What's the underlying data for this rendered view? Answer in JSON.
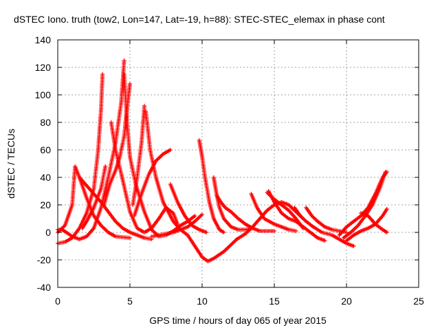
{
  "chart_data": {
    "type": "scatter",
    "title": "dSTEC Iono. truth (tow2, Lon=147, Lat=-19, h=88): STEC-STEC_elemax in phase cont",
    "xlabel": "GPS time / hours of day 065 of year 2015",
    "ylabel": "dSTEC  / TECUs",
    "xlim": [
      0,
      25
    ],
    "ylim": [
      -40,
      140
    ],
    "xticks": [
      "0",
      "5",
      "10",
      "15",
      "20",
      "25"
    ],
    "yticks": [
      "-40",
      "-20",
      "0",
      "20",
      "40",
      "60",
      "80",
      "100",
      "120",
      "140"
    ],
    "grid": true,
    "marker": "+",
    "color": "#ff0000",
    "tracks": [
      [
        [
          0,
          -8
        ],
        [
          0.5,
          -7
        ],
        [
          1,
          -4
        ],
        [
          1.5,
          3
        ],
        [
          2,
          14
        ],
        [
          2.5,
          32
        ],
        [
          2.8,
          60
        ],
        [
          3,
          90
        ],
        [
          3.1,
          115
        ]
      ],
      [
        [
          0,
          2
        ],
        [
          0.3,
          2
        ],
        [
          0.6,
          0
        ],
        [
          1,
          -3
        ],
        [
          1.5,
          -5
        ],
        [
          2,
          -3
        ],
        [
          2.5,
          3
        ],
        [
          3,
          18
        ],
        [
          3.5,
          40
        ],
        [
          4,
          65
        ],
        [
          4.4,
          95
        ],
        [
          4.6,
          125
        ]
      ],
      [
        [
          3.7,
          80
        ],
        [
          4,
          60
        ],
        [
          4.5,
          38
        ],
        [
          5,
          15
        ],
        [
          5.5,
          3
        ],
        [
          6,
          0
        ],
        [
          6.5,
          3
        ],
        [
          7,
          10
        ],
        [
          7.5,
          18
        ],
        [
          8,
          14
        ],
        [
          8.3,
          6
        ]
      ],
      [
        [
          4.6,
          115
        ],
        [
          4.8,
          80
        ],
        [
          5,
          55
        ],
        [
          5.4,
          35
        ],
        [
          6,
          15
        ],
        [
          6.5,
          2
        ],
        [
          7,
          -3
        ],
        [
          7.5,
          -2
        ],
        [
          8,
          1
        ],
        [
          8.5,
          5
        ],
        [
          9,
          8
        ],
        [
          9.5,
          12
        ]
      ],
      [
        [
          3.2,
          20
        ],
        [
          3.6,
          35
        ],
        [
          4,
          45
        ],
        [
          4.3,
          55
        ],
        [
          4.6,
          70
        ],
        [
          4.8,
          90
        ],
        [
          5,
          108
        ]
      ],
      [
        [
          5.2,
          20
        ],
        [
          5.5,
          40
        ],
        [
          5.8,
          65
        ],
        [
          6,
          92
        ]
      ],
      [
        [
          6.1,
          88
        ],
        [
          6.4,
          60
        ],
        [
          6.8,
          40
        ],
        [
          7.3,
          22
        ],
        [
          8,
          8
        ],
        [
          8.5,
          2
        ],
        [
          9,
          -2
        ],
        [
          9.5,
          -10
        ],
        [
          10,
          -18
        ],
        [
          10.4,
          -21
        ],
        [
          10.8,
          -19
        ],
        [
          11.5,
          -14
        ],
        [
          12,
          -9
        ],
        [
          12.4,
          -5
        ]
      ],
      [
        [
          5.3,
          12
        ],
        [
          5.8,
          28
        ],
        [
          6.3,
          42
        ],
        [
          6.8,
          52
        ],
        [
          7.3,
          57
        ],
        [
          7.8,
          60
        ]
      ],
      [
        [
          9.8,
          67
        ],
        [
          10,
          55
        ],
        [
          10.2,
          40
        ],
        [
          10.5,
          22
        ],
        [
          10.8,
          10
        ],
        [
          11.2,
          2
        ],
        [
          11.5,
          0
        ]
      ],
      [
        [
          10.8,
          40
        ],
        [
          11,
          28
        ],
        [
          11.2,
          18
        ],
        [
          11.5,
          10
        ],
        [
          12,
          4
        ],
        [
          12.5,
          2
        ],
        [
          13,
          2
        ],
        [
          13.5,
          3
        ]
      ],
      [
        [
          11,
          27
        ],
        [
          11.3,
          22
        ],
        [
          11.6,
          18
        ],
        [
          12,
          15
        ],
        [
          12.5,
          10
        ],
        [
          13,
          6
        ],
        [
          13.5,
          3
        ],
        [
          14,
          1
        ],
        [
          14.5,
          1
        ],
        [
          15,
          1
        ]
      ],
      [
        [
          0,
          0
        ],
        [
          0.5,
          5
        ],
        [
          1,
          20
        ],
        [
          1.2,
          48
        ],
        [
          1.5,
          40
        ],
        [
          2,
          25
        ],
        [
          2.5,
          12
        ],
        [
          3,
          5
        ],
        [
          3.5,
          0
        ],
        [
          4,
          -3
        ],
        [
          5,
          -4
        ]
      ],
      [
        [
          1.5,
          40
        ],
        [
          2,
          34
        ],
        [
          2.5,
          28
        ],
        [
          3,
          22
        ],
        [
          3.5,
          15
        ],
        [
          4,
          8
        ],
        [
          4.5,
          3
        ],
        [
          5,
          0
        ],
        [
          5.5,
          -2
        ],
        [
          6,
          -4
        ],
        [
          6.5,
          -5
        ]
      ],
      [
        [
          1.7,
          3
        ],
        [
          2,
          8
        ],
        [
          2.5,
          18
        ],
        [
          3,
          32
        ],
        [
          3.3,
          48
        ]
      ],
      [
        [
          13.4,
          28
        ],
        [
          13.8,
          18
        ],
        [
          14.3,
          10
        ],
        [
          15,
          6
        ],
        [
          15.5,
          4
        ],
        [
          16,
          2
        ],
        [
          16.5,
          1
        ]
      ],
      [
        [
          14.6,
          30
        ],
        [
          15,
          22
        ],
        [
          15.5,
          14
        ],
        [
          16,
          10
        ],
        [
          16.5,
          8
        ],
        [
          17,
          4
        ],
        [
          17.5,
          0
        ],
        [
          18,
          -4
        ],
        [
          18.5,
          -6
        ]
      ],
      [
        [
          14.5,
          29
        ],
        [
          15,
          24
        ],
        [
          15.5,
          20
        ],
        [
          16,
          16
        ],
        [
          16.5,
          10
        ],
        [
          17,
          3
        ]
      ],
      [
        [
          16.4,
          18
        ],
        [
          16.8,
          12
        ],
        [
          17.2,
          8
        ],
        [
          17.7,
          4
        ],
        [
          18.3,
          0
        ],
        [
          19,
          -2
        ],
        [
          19.5,
          -5
        ],
        [
          20,
          -8
        ],
        [
          20.5,
          -10
        ]
      ],
      [
        [
          17.2,
          18
        ],
        [
          17.6,
          12
        ],
        [
          18,
          8
        ],
        [
          18.5,
          4
        ],
        [
          19,
          2
        ],
        [
          19.5,
          1
        ],
        [
          20,
          0
        ]
      ],
      [
        [
          12.4,
          -5
        ],
        [
          13,
          -1
        ],
        [
          13.5,
          4
        ],
        [
          14,
          10
        ],
        [
          14.5,
          16
        ],
        [
          15,
          20
        ],
        [
          15.5,
          22
        ],
        [
          16,
          20
        ],
        [
          16.5,
          15
        ],
        [
          17,
          10
        ]
      ],
      [
        [
          19.5,
          -2
        ],
        [
          20,
          4
        ],
        [
          20.5,
          8
        ],
        [
          21,
          12
        ],
        [
          21.5,
          18
        ],
        [
          22,
          28
        ],
        [
          22.5,
          40
        ],
        [
          22.8,
          44
        ]
      ],
      [
        [
          20,
          -6
        ],
        [
          20.5,
          -2
        ],
        [
          21,
          1
        ],
        [
          21.5,
          3
        ],
        [
          22,
          6
        ],
        [
          22.5,
          12
        ],
        [
          22.8,
          17
        ]
      ],
      [
        [
          21,
          14
        ],
        [
          21.5,
          12
        ],
        [
          22,
          6
        ],
        [
          22.5,
          2
        ],
        [
          22.8,
          0
        ]
      ],
      [
        [
          19.8,
          -4
        ],
        [
          20.3,
          0
        ],
        [
          20.8,
          5
        ],
        [
          21.3,
          12
        ],
        [
          21.8,
          20
        ],
        [
          22.3,
          32
        ],
        [
          22.7,
          44
        ]
      ],
      [
        [
          10,
          13
        ],
        [
          9.5,
          8
        ],
        [
          9,
          4
        ],
        [
          8.5,
          2
        ],
        [
          8,
          0
        ],
        [
          7.5,
          -1
        ],
        [
          7,
          -2
        ],
        [
          6.5,
          -3
        ]
      ],
      [
        [
          7.8,
          35
        ],
        [
          8.3,
          22
        ],
        [
          8.8,
          12
        ],
        [
          9.3,
          5
        ],
        [
          9.8,
          2
        ],
        [
          10.3,
          0
        ]
      ]
    ]
  }
}
